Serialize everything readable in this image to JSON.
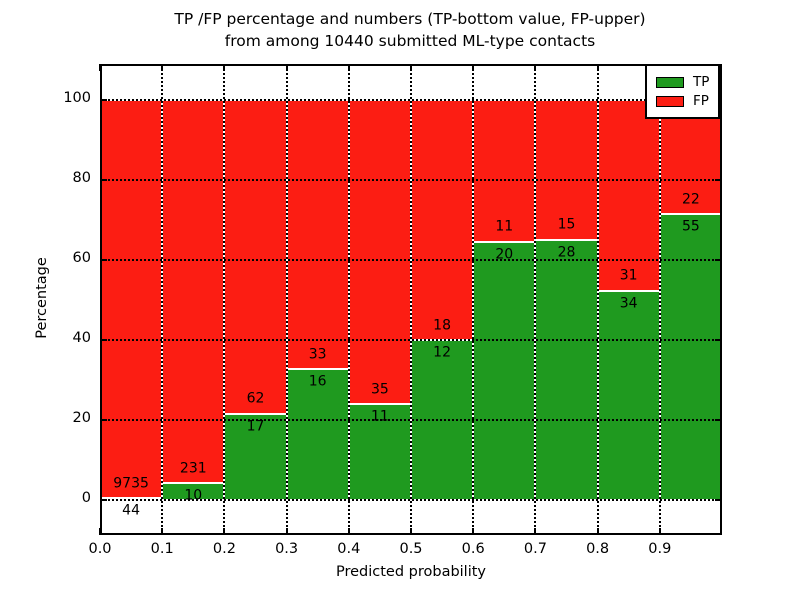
{
  "title_lines": [
    "TP /FP percentage and numbers (TP-bottom value, FP-upper)",
    "from among 10440 submitted ML-type contacts"
  ],
  "chart_data": {
    "type": "bar",
    "stacked": true,
    "normalized": "percent_of_bin_total",
    "title": "TP /FP percentage and numbers (TP-bottom value, FP-upper) from among 10440 submitted ML-type contacts",
    "xlabel": "Predicted probability",
    "ylabel": "Percentage",
    "total_contacts": 10440,
    "bins": [
      "0.0-0.1",
      "0.1-0.2",
      "0.2-0.3",
      "0.3-0.4",
      "0.4-0.5",
      "0.5-0.6",
      "0.6-0.7",
      "0.7-0.8",
      "0.8-0.9",
      "0.9-1.0"
    ],
    "series": [
      {
        "name": "TP",
        "color": "#1f9a1f",
        "values": [
          44,
          10,
          17,
          16,
          11,
          12,
          20,
          28,
          34,
          55
        ]
      },
      {
        "name": "FP",
        "color": "#fc1d13",
        "values": [
          9735,
          231,
          62,
          33,
          35,
          18,
          11,
          15,
          31,
          22
        ]
      }
    ],
    "x_ticks": [
      "0.0",
      "0.1",
      "0.2",
      "0.3",
      "0.4",
      "0.5",
      "0.6",
      "0.7",
      "0.8",
      "0.9"
    ],
    "y_ticks": [
      0,
      20,
      40,
      60,
      80,
      100
    ],
    "xlim": [
      0.0,
      1.0
    ],
    "ylim": [
      -8.75,
      109
    ],
    "grid": {
      "style": "dotted",
      "color": "#000000",
      "on": true
    },
    "legend": {
      "position": "upper right"
    },
    "bar_edge_color": "#ffffff",
    "background": "#ffffff"
  }
}
